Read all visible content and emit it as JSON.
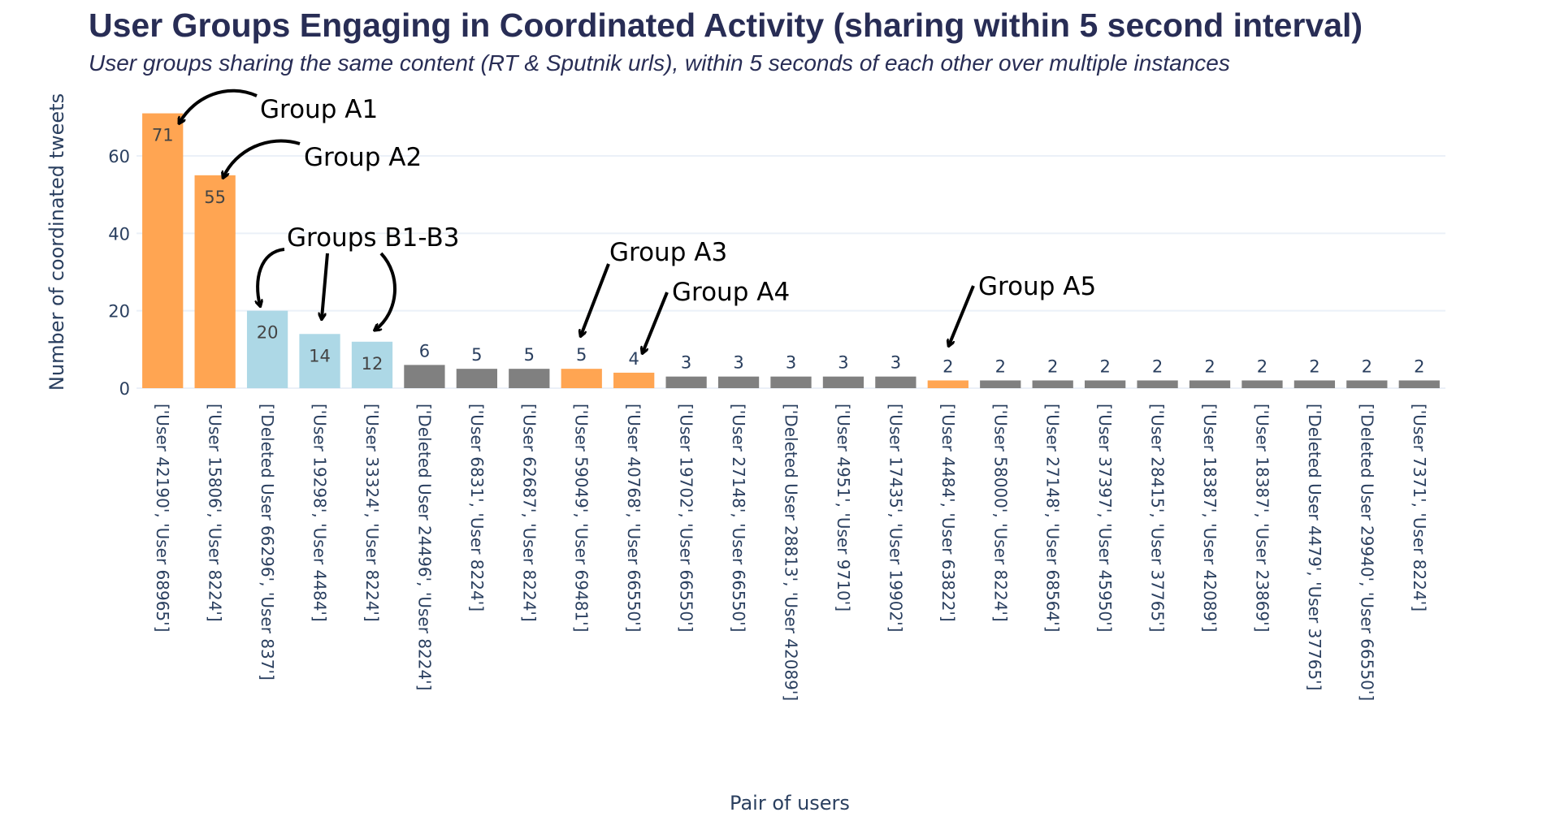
{
  "chart_data": {
    "type": "bar",
    "title": "User Groups Engaging in Coordinated Activity (sharing within 5 second interval)",
    "subtitle": "User groups sharing the same content (RT & Sputnik urls), within 5 seconds of each other over multiple instances",
    "xlabel": "Pair of users",
    "ylabel": "Number of coordinated tweets",
    "ylim": [
      0,
      75
    ],
    "yticks": [
      0,
      20,
      40,
      60
    ],
    "grid": true,
    "colors": {
      "orange": "#ffa552",
      "lightblue": "#add8e6",
      "grey": "#808080",
      "axis_text": "#2a3f5f",
      "grid": "#ebf0f8"
    },
    "categories": [
      "['User 42190', 'User 68965']",
      "['User 15806', 'User 8224']",
      "['Deleted User 66296', 'User 837']",
      "['User 19298', 'User 4484']",
      "['User 33324', 'User 8224']",
      "['Deleted User 24496', 'User 8224']",
      "['User 6831', 'User 8224']",
      "['User 62687', 'User 8224']",
      "['User 59049', 'User 69481']",
      "['User 40768', 'User 66550']",
      "['User 19702', 'User 66550']",
      "['User 27148', 'User 66550']",
      "['Deleted User 28813', 'User 42089']",
      "['User 4951', 'User 9710']",
      "['User 17435', 'User 19902']",
      "['User 4484', 'User 63822']",
      "['User 58000', 'User 8224']",
      "['User 27148', 'User 68564']",
      "['User 37397', 'User 45950']",
      "['User 28415', 'User 37765']",
      "['User 18387', 'User 42089']",
      "['User 18387', 'User 23869']",
      "['Deleted User 4479', 'User 37765']",
      "['Deleted User 29940', 'User 66550']",
      "['User 7371', 'User 8224']"
    ],
    "values": [
      71,
      55,
      20,
      14,
      12,
      6,
      5,
      5,
      5,
      4,
      3,
      3,
      3,
      3,
      3,
      2,
      2,
      2,
      2,
      2,
      2,
      2,
      2,
      2,
      2
    ],
    "bar_colors": [
      "orange",
      "orange",
      "lightblue",
      "lightblue",
      "lightblue",
      "grey",
      "grey",
      "grey",
      "orange",
      "orange",
      "grey",
      "grey",
      "grey",
      "grey",
      "grey",
      "orange",
      "grey",
      "grey",
      "grey",
      "grey",
      "grey",
      "grey",
      "grey",
      "grey",
      "grey"
    ],
    "annotations": [
      {
        "text": "Group A1",
        "targets": [
          0
        ]
      },
      {
        "text": "Group A2",
        "targets": [
          1
        ]
      },
      {
        "text": "Groups B1-B3",
        "targets": [
          2,
          3,
          4
        ]
      },
      {
        "text": "Group A3",
        "targets": [
          8
        ]
      },
      {
        "text": "Group A4",
        "targets": [
          9
        ]
      },
      {
        "text": "Group A5",
        "targets": [
          15
        ]
      }
    ]
  }
}
